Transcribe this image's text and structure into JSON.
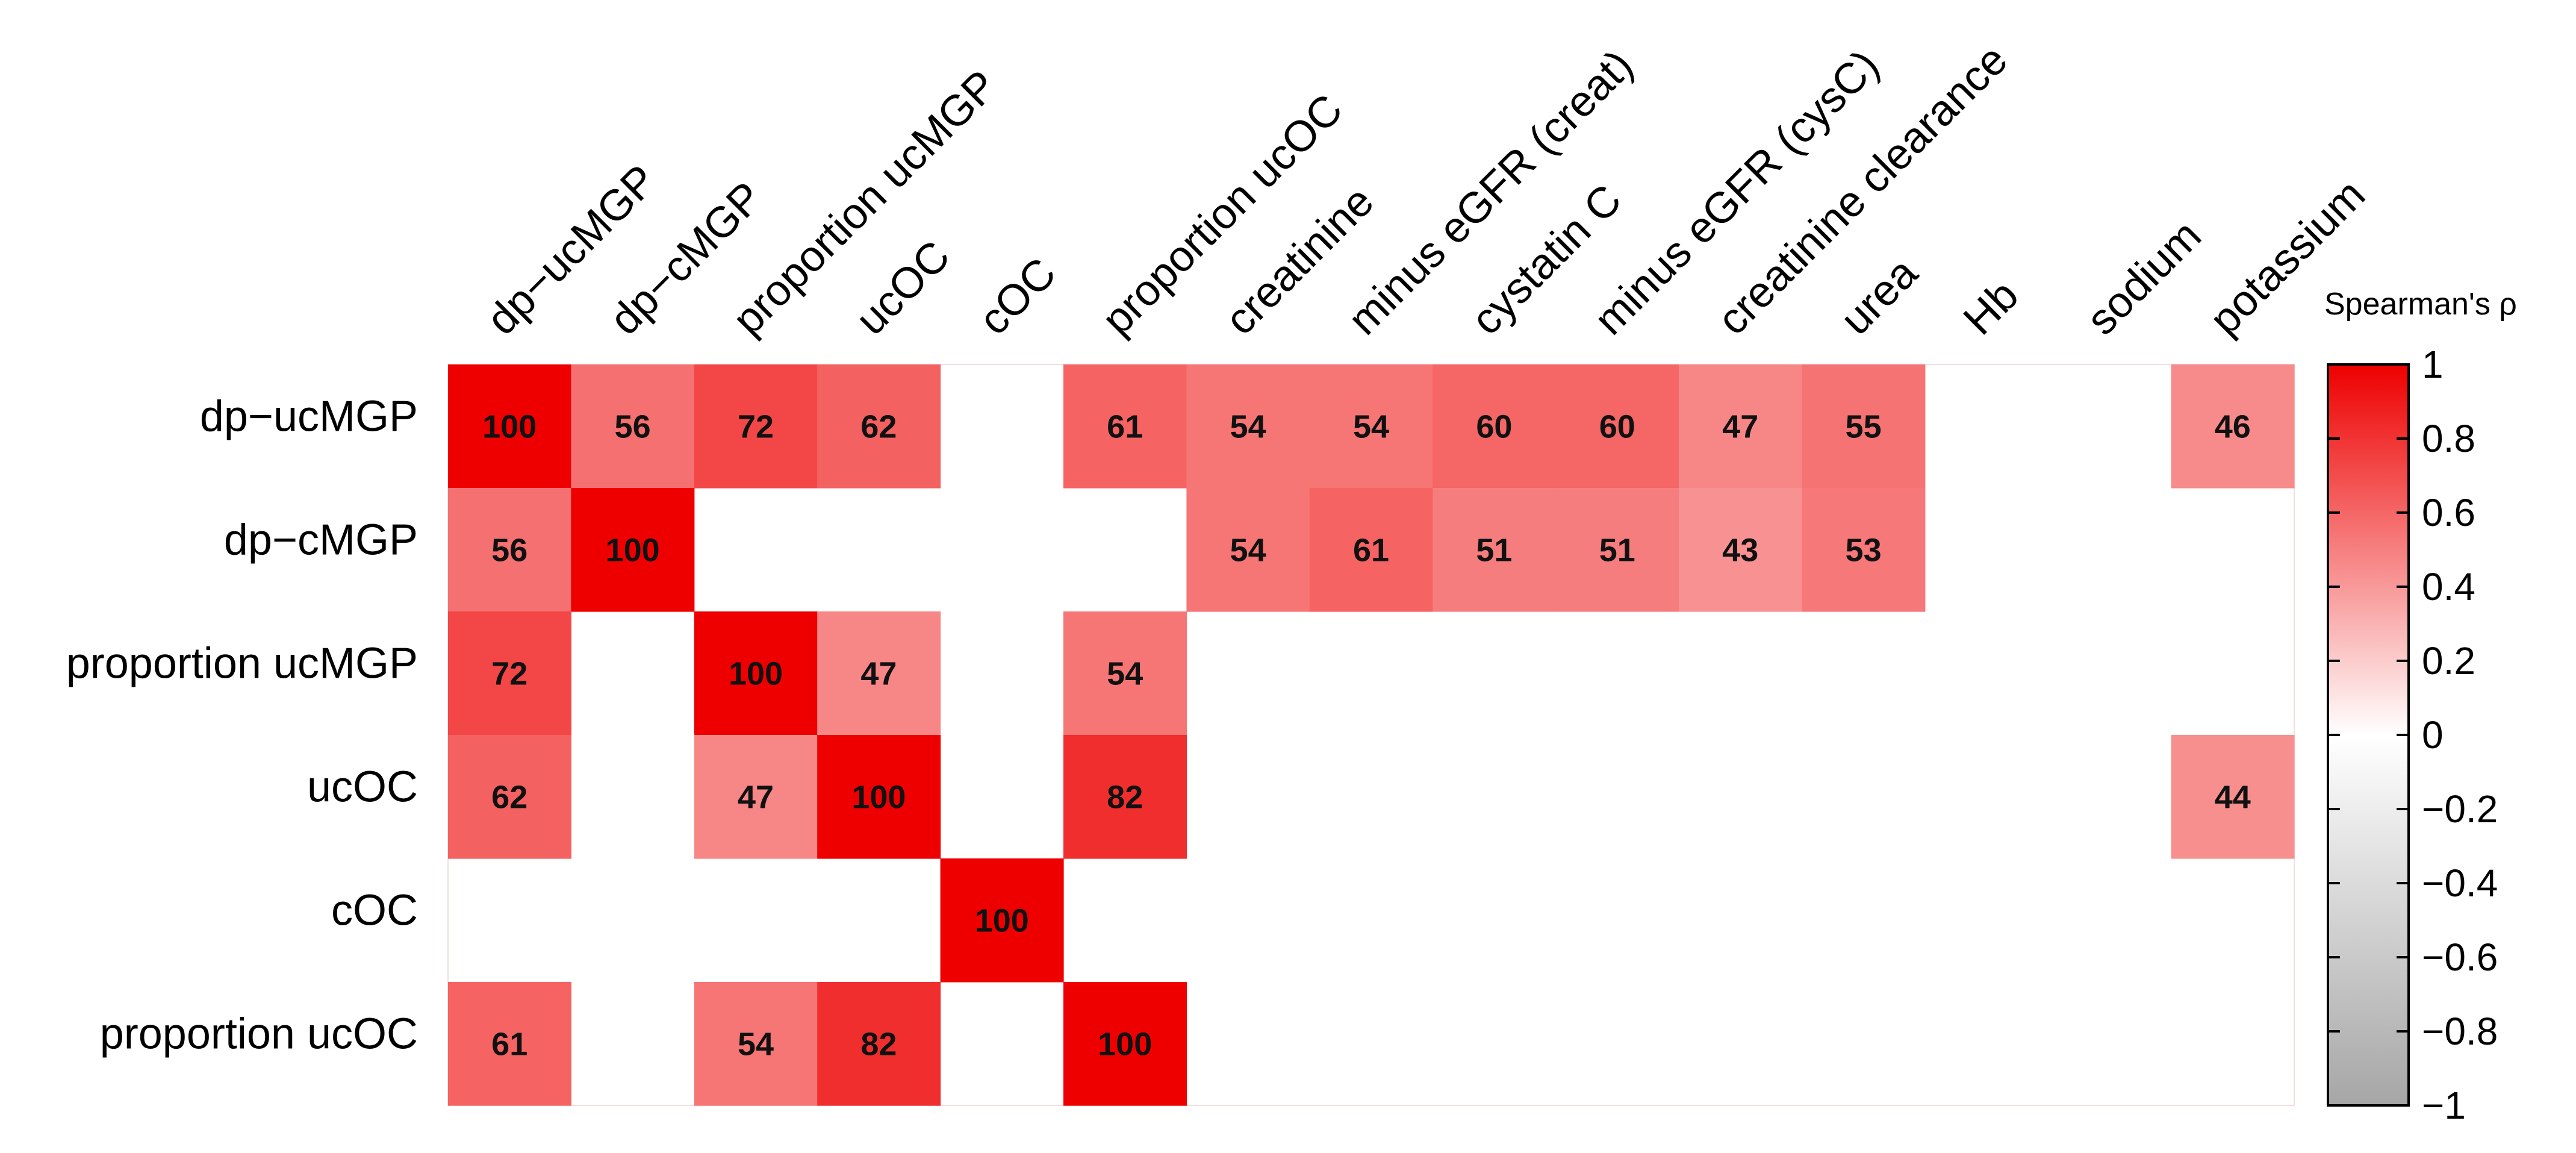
{
  "chart_data": {
    "type": "heatmap",
    "rows": [
      "dp−ucMGP",
      "dp−cMGP",
      "proportion ucMGP",
      "ucOC",
      "cOC",
      "proportion ucOC"
    ],
    "columns": [
      "dp−ucMGP",
      "dp−cMGP",
      "proportion ucMGP",
      "ucOC",
      "cOC",
      "proportion ucOC",
      "creatinine",
      "minus eGFR (creat)",
      "cystatin C",
      "minus eGFR (cysC)",
      "creatinine clearance",
      "urea",
      "Hb",
      "sodium",
      "potassium"
    ],
    "values": [
      [
        100,
        56,
        72,
        62,
        null,
        61,
        54,
        54,
        60,
        60,
        47,
        55,
        null,
        null,
        46
      ],
      [
        56,
        100,
        null,
        null,
        null,
        null,
        54,
        61,
        51,
        51,
        43,
        53,
        null,
        null,
        null
      ],
      [
        72,
        null,
        100,
        47,
        null,
        54,
        null,
        null,
        null,
        null,
        null,
        null,
        null,
        null,
        null
      ],
      [
        62,
        null,
        47,
        100,
        null,
        82,
        null,
        null,
        null,
        null,
        null,
        null,
        null,
        null,
        44
      ],
      [
        null,
        null,
        null,
        null,
        100,
        null,
        null,
        null,
        null,
        null,
        null,
        null,
        null,
        null,
        null
      ],
      [
        61,
        null,
        54,
        82,
        null,
        100,
        null,
        null,
        null,
        null,
        null,
        null,
        null,
        null,
        null
      ]
    ],
    "value_scale": 100,
    "colorbar": {
      "title": "Spearman's ρ",
      "range": [
        -1,
        1
      ],
      "ticks": [
        "1",
        "0.8",
        "0.6",
        "0.4",
        "0.2",
        "0",
        "−0.2",
        "−0.4",
        "−0.6",
        "−0.8",
        "−1"
      ],
      "colors": {
        "positive": "#ee0000",
        "zero": "#ffffff",
        "negative": "#a6a6a6"
      }
    },
    "legend_position": "right",
    "grid": false
  }
}
